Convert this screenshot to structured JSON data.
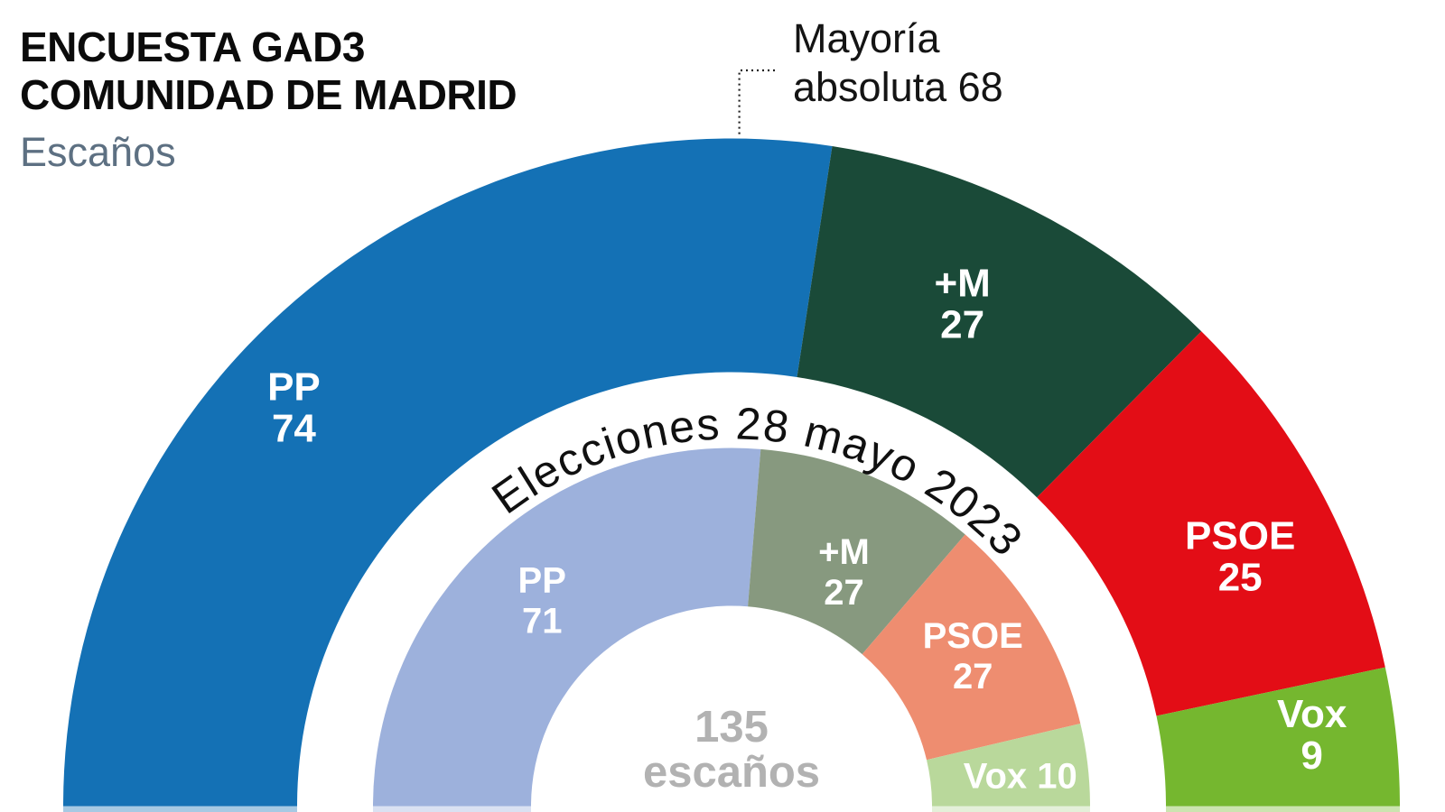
{
  "header": {
    "title_line1": "ENCUESTA GAD3",
    "title_line2": "COMUNIDAD DE MADRID",
    "subtitle": "Escaños"
  },
  "annotation": {
    "line1": "Mayoría",
    "line2": "absoluta 68"
  },
  "chart_data": {
    "type": "pie",
    "subtype": "half-donut-two-rings",
    "orientation_degrees": 180,
    "total_seats": 135,
    "majority_threshold": 68,
    "center_label_lines": [
      "135",
      "escaños"
    ],
    "rings": [
      {
        "id": "encuesta-gad3",
        "position": "outer",
        "caption": null,
        "segments": [
          {
            "party": "PP",
            "seats": 74,
            "color": "#1471b5",
            "label_lines": [
              "PP",
              "74"
            ],
            "label_da": 7,
            "label_dr": 45
          },
          {
            "party": "+M",
            "seats": 27,
            "color": "#1a4a38",
            "label_lines": [
              "+M",
              "27"
            ],
            "label_da": 2,
            "label_dr": 2
          },
          {
            "party": "PSOE",
            "seats": 25,
            "color": "#e30d16",
            "label_lines": [
              "PSOE",
              "25"
            ],
            "label_da": -2.5,
            "label_dr": 17
          },
          {
            "party": "Vox",
            "seats": 9,
            "color": "#75b72f",
            "label_lines": [
              "Vox",
              "9"
            ],
            "label_da": 1,
            "label_dr": 37
          }
        ]
      },
      {
        "id": "elecciones-2023",
        "position": "inner",
        "caption": "Elecciones 28 mayo 2023",
        "segments": [
          {
            "party": "PP",
            "seats": 71,
            "color": "#9db1dc",
            "label_lines": [
              "PP",
              "71"
            ],
            "label_da": 0,
            "label_dr": 0
          },
          {
            "party": "+M",
            "seats": 27,
            "color": "#87997f",
            "label_lines": [
              "+M",
              "27"
            ],
            "label_da": -3,
            "label_dr": -22
          },
          {
            "party": "PSOE",
            "seats": 27,
            "color": "#ee8d70",
            "label_lines": [
              "PSOE",
              "27"
            ],
            "label_da": 0.5,
            "label_dr": 5
          },
          {
            "party": "Vox",
            "seats": 10,
            "color": "#b9d89b",
            "label_lines": [
              "Vox 10"
            ],
            "label_da": -0.75,
            "label_dr": 12
          }
        ]
      }
    ],
    "colors": {
      "annotation_connector": "#222222",
      "center_label": "#b2b2b2",
      "caption_text": "#101010",
      "segment_label_text": "#ffffff"
    }
  }
}
